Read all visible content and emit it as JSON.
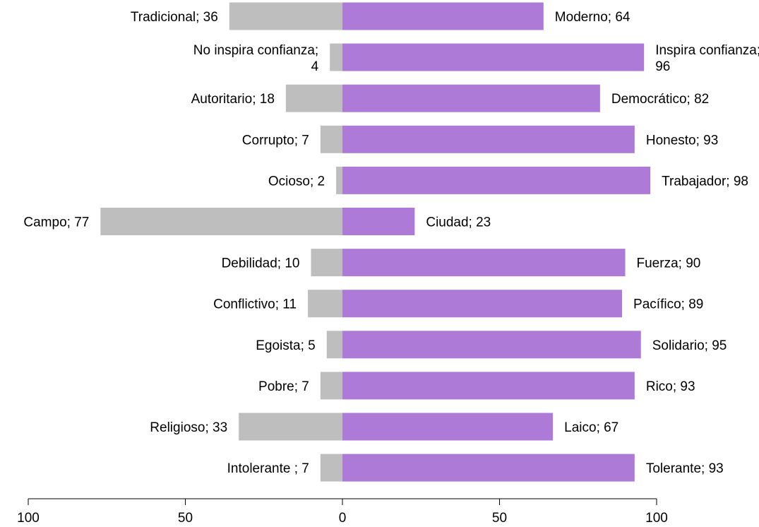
{
  "chart_data": {
    "type": "bar",
    "orientation": "horizontal-diverging",
    "title": "",
    "xlabel": "",
    "ylabel": "",
    "xlim": [
      -100,
      100
    ],
    "x_ticks": [
      -100,
      -50,
      0,
      50,
      100
    ],
    "x_tick_labels": [
      "100",
      "50",
      "0",
      "50",
      "100"
    ],
    "grid": false,
    "legend": "none",
    "colors": {
      "left": "#bebebe",
      "right": "#ae7ad8"
    },
    "rows": [
      {
        "left_label": "Tradicional; 36",
        "left_value": 36,
        "right_label": "Moderno; 64",
        "right_value": 64
      },
      {
        "left_label": "No inspira confianza; 4",
        "left_value": 4,
        "right_label": "Inspira confianza; 96",
        "right_value": 96
      },
      {
        "left_label": "Autoritario; 18",
        "left_value": 18,
        "right_label": "Democrático; 82",
        "right_value": 82
      },
      {
        "left_label": "Corrupto; 7",
        "left_value": 7,
        "right_label": "Honesto; 93",
        "right_value": 93
      },
      {
        "left_label": "Ocioso; 2",
        "left_value": 2,
        "right_label": "Trabajador; 98",
        "right_value": 98
      },
      {
        "left_label": "Campo; 77",
        "left_value": 77,
        "right_label": "Ciudad; 23",
        "right_value": 23
      },
      {
        "left_label": "Debilidad; 10",
        "left_value": 10,
        "right_label": "Fuerza; 90",
        "right_value": 90
      },
      {
        "left_label": "Conflictivo; 11",
        "left_value": 11,
        "right_label": "Pacífico; 89",
        "right_value": 89
      },
      {
        "left_label": "Egoista; 5",
        "left_value": 5,
        "right_label": "Solidario; 95",
        "right_value": 95
      },
      {
        "left_label": "Pobre; 7",
        "left_value": 7,
        "right_label": "Rico; 93",
        "right_value": 93
      },
      {
        "left_label": "Religioso; 33",
        "left_value": 33,
        "right_label": "Laico; 67",
        "right_value": 67
      },
      {
        "left_label": "Intolerante ; 7",
        "left_value": 7,
        "right_label": "Tolerante; 93",
        "right_value": 93
      }
    ]
  }
}
